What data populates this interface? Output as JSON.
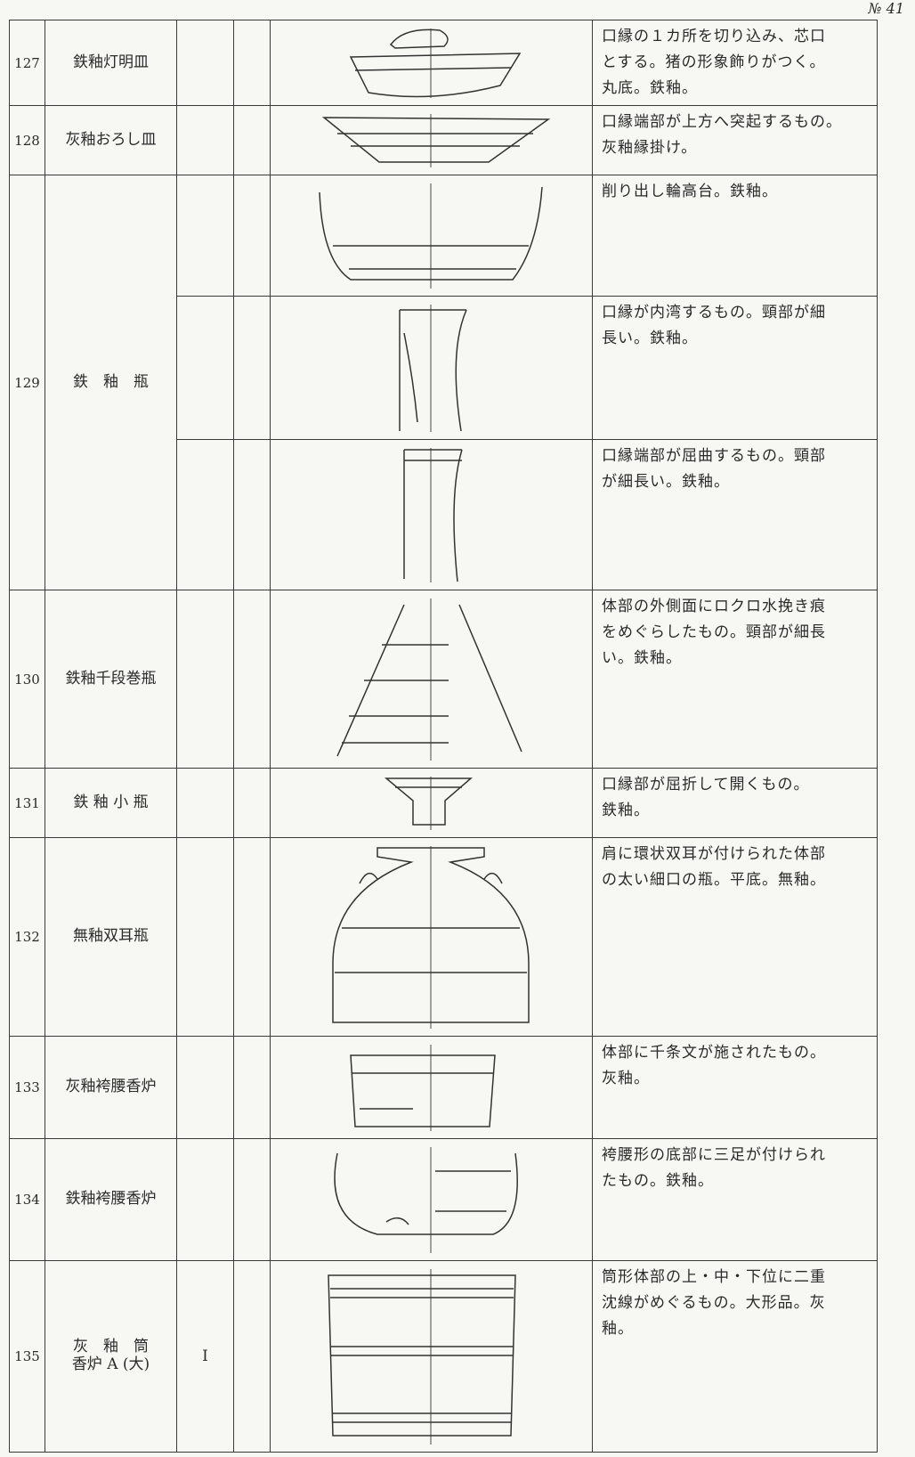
{
  "page_number": "№ 41",
  "table": {
    "rows": [
      {
        "no": 127,
        "name": [
          "鉄釉灯明皿"
        ],
        "parts": [
          {
            "description": [
              "口縁の１カ所を切り込み、芯口",
              "とする。猪の形象飾りがつく。",
              "丸底。鉄釉。"
            ]
          }
        ]
      },
      {
        "no": 128,
        "name": [
          "灰釉おろし皿"
        ],
        "parts": [
          {
            "description": [
              "口縁端部が上方へ突起するもの。",
              "灰釉縁掛け。"
            ]
          }
        ]
      },
      {
        "no": 129,
        "name": [
          "鉄　釉　瓶"
        ],
        "parts": [
          {
            "description": [
              "削り出し輪高台。鉄釉。"
            ]
          },
          {
            "description": [
              "口縁が内湾するもの。頸部が細",
              "長い。鉄釉。"
            ]
          },
          {
            "description": [
              "口縁端部が屈曲するもの。頸部",
              "が細長い。鉄釉。"
            ]
          }
        ]
      },
      {
        "no": 130,
        "name": [
          "鉄釉千段巻瓶"
        ],
        "parts": [
          {
            "description": [
              "体部の外側面にロクロ水挽き痕",
              "をめぐらしたもの。頸部が細長",
              "い。鉄釉。"
            ]
          }
        ]
      },
      {
        "no": 131,
        "name": [
          "鉄 釉 小 瓶"
        ],
        "parts": [
          {
            "description": [
              "口縁部が屈折して開くもの。",
              "鉄釉。"
            ]
          }
        ]
      },
      {
        "no": 132,
        "name": [
          "無釉双耳瓶"
        ],
        "parts": [
          {
            "description": [
              "肩に環状双耳が付けられた体部",
              "の太い細口の瓶。平底。無釉。"
            ]
          }
        ]
      },
      {
        "no": 133,
        "name": [
          "灰釉袴腰香炉"
        ],
        "parts": [
          {
            "description": [
              "体部に千条文が施されたもの。",
              "灰釉。"
            ]
          }
        ]
      },
      {
        "no": 134,
        "name": [
          "鉄釉袴腰香炉"
        ],
        "parts": [
          {
            "description": [
              "袴腰形の底部に三足が付けられ",
              "たもの。鉄釉。"
            ]
          }
        ]
      },
      {
        "no": 135,
        "name": [
          "灰　釉　筒",
          "香炉 A (大)"
        ],
        "type": "I",
        "parts": [
          {
            "description": [
              "筒形体部の上・中・下位に二重",
              "沈線がめぐるもの。大形品。灰",
              "釉。"
            ]
          }
        ]
      }
    ]
  }
}
